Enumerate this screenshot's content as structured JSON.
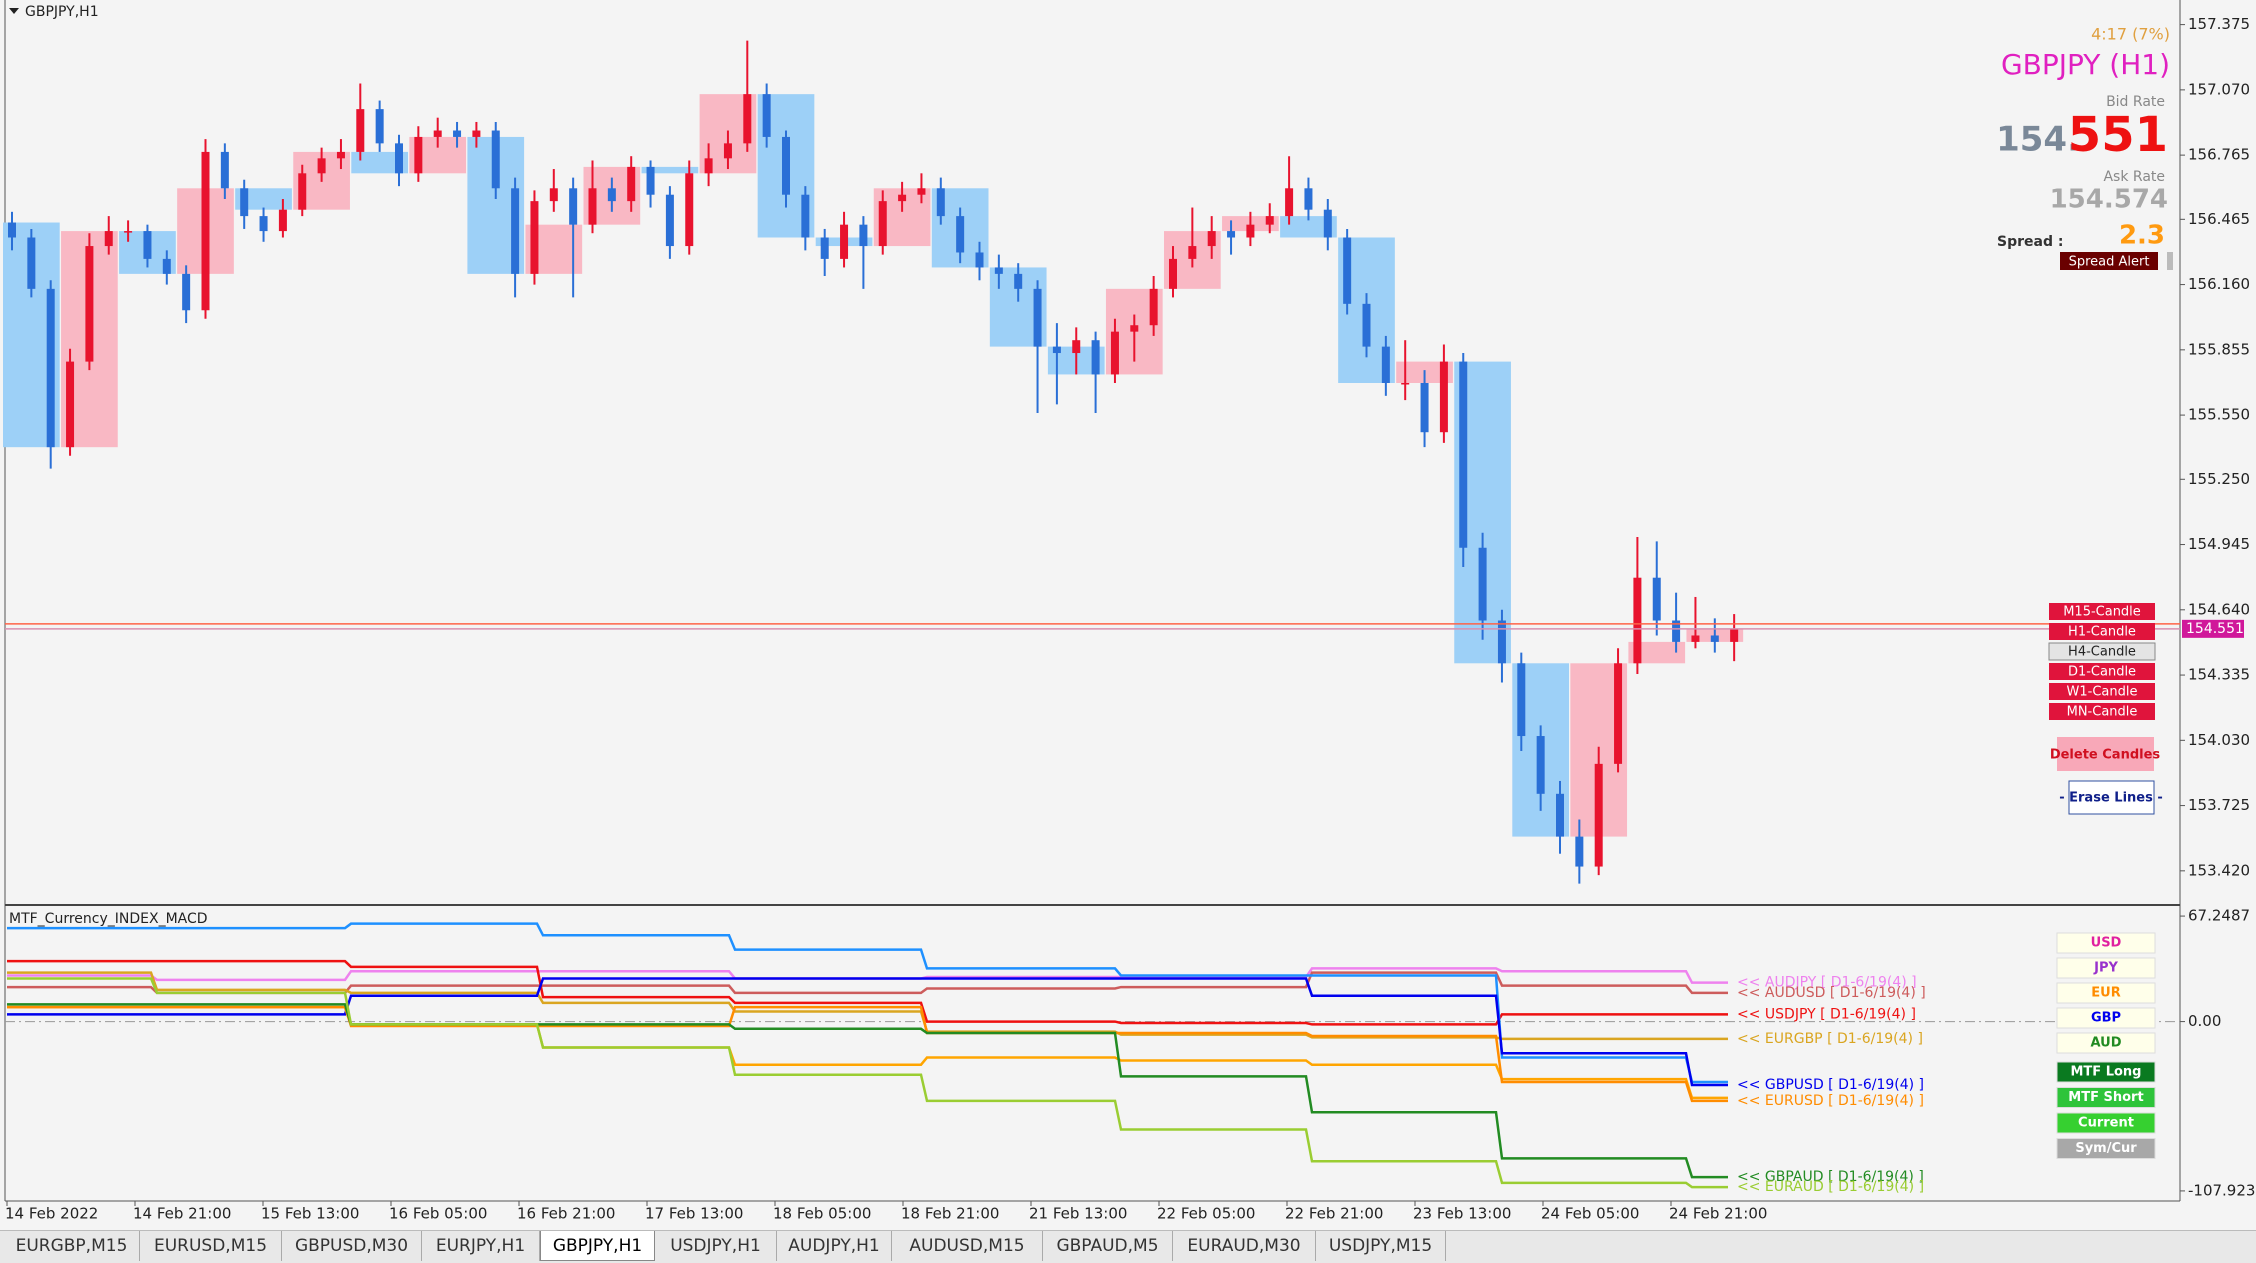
{
  "header": {
    "symbol": "GBPJPY,H1"
  },
  "price_chart": {
    "ylim": [
      153.265,
      157.49
    ],
    "yticks": [
      157.375,
      {
        "value": 157.07,
        "label": "157.070"
      },
      156.765,
      156.465,
      {
        "value": 156.16,
        "label": "156.160"
      },
      155.855,
      {
        "value": 155.55,
        "label": "155.550"
      },
      {
        "value": 155.25,
        "label": "155.250"
      },
      154.945,
      {
        "value": 154.64,
        "label": "154.640"
      },
      154.335,
      {
        "value": 154.03,
        "label": "154.030"
      },
      153.725,
      {
        "value": 153.42,
        "label": "153.420"
      }
    ],
    "up_color": "#e8132e",
    "down_color": "#2a6fd6",
    "up_box_color": "#f9b8c4",
    "down_box_color": "#9dd0f7",
    "bid": 154.551,
    "ask": 154.574,
    "bid_color": "#d890b0",
    "ask_color": "#ff6347",
    "candles": [
      [
        156.45,
        156.5,
        156.32,
        156.38
      ],
      [
        156.38,
        156.42,
        156.1,
        156.14
      ],
      [
        156.14,
        156.18,
        155.3,
        155.4
      ],
      [
        155.4,
        155.86,
        155.36,
        155.8
      ],
      [
        155.8,
        156.4,
        155.76,
        156.34
      ],
      [
        156.34,
        156.48,
        156.3,
        156.41
      ],
      [
        156.41,
        156.46,
        156.36,
        156.41
      ],
      [
        156.41,
        156.44,
        156.24,
        156.28
      ],
      [
        156.28,
        156.32,
        156.16,
        156.21
      ],
      [
        156.21,
        156.25,
        155.98,
        156.04
      ],
      [
        156.04,
        156.84,
        156.0,
        156.78
      ],
      [
        156.78,
        156.82,
        156.56,
        156.61
      ],
      [
        156.61,
        156.65,
        156.42,
        156.48
      ],
      [
        156.48,
        156.52,
        156.36,
        156.41
      ],
      [
        156.41,
        156.56,
        156.38,
        156.51
      ],
      [
        156.51,
        156.72,
        156.48,
        156.68
      ],
      [
        156.68,
        156.8,
        156.64,
        156.75
      ],
      [
        156.75,
        156.84,
        156.7,
        156.78
      ],
      [
        156.78,
        157.1,
        156.74,
        156.98
      ],
      [
        156.98,
        157.02,
        156.78,
        156.82
      ],
      [
        156.82,
        156.86,
        156.62,
        156.68
      ],
      [
        156.68,
        156.9,
        156.64,
        156.85
      ],
      [
        156.85,
        156.94,
        156.8,
        156.88
      ],
      [
        156.88,
        156.92,
        156.8,
        156.85
      ],
      [
        156.85,
        156.92,
        156.8,
        156.88
      ],
      [
        156.88,
        156.92,
        156.56,
        156.61
      ],
      [
        156.61,
        156.66,
        156.1,
        156.21
      ],
      [
        156.21,
        156.6,
        156.16,
        156.55
      ],
      [
        156.55,
        156.7,
        156.5,
        156.61
      ],
      [
        156.61,
        156.66,
        156.1,
        156.44
      ],
      [
        156.44,
        156.74,
        156.4,
        156.61
      ],
      [
        156.61,
        156.66,
        156.5,
        156.55
      ],
      [
        156.55,
        156.76,
        156.5,
        156.71
      ],
      [
        156.71,
        156.74,
        156.52,
        156.58
      ],
      [
        156.58,
        156.62,
        156.28,
        156.34
      ],
      [
        156.34,
        156.74,
        156.3,
        156.68
      ],
      [
        156.68,
        156.82,
        156.62,
        156.75
      ],
      [
        156.75,
        156.88,
        156.7,
        156.82
      ],
      [
        156.82,
        157.3,
        156.78,
        157.05
      ],
      [
        157.05,
        157.1,
        156.8,
        156.85
      ],
      [
        156.85,
        156.88,
        156.52,
        156.58
      ],
      [
        156.58,
        156.62,
        156.32,
        156.38
      ],
      [
        156.38,
        156.42,
        156.2,
        156.28
      ],
      [
        156.28,
        156.5,
        156.24,
        156.44
      ],
      [
        156.44,
        156.48,
        156.14,
        156.34
      ],
      [
        156.34,
        156.6,
        156.3,
        156.55
      ],
      [
        156.55,
        156.64,
        156.5,
        156.58
      ],
      [
        156.58,
        156.68,
        156.54,
        156.61
      ],
      [
        156.61,
        156.66,
        156.44,
        156.48
      ],
      [
        156.48,
        156.52,
        156.26,
        156.31
      ],
      [
        156.31,
        156.36,
        156.18,
        156.24
      ],
      [
        156.24,
        156.3,
        156.14,
        156.21
      ],
      [
        156.21,
        156.26,
        156.08,
        156.14
      ],
      [
        156.14,
        156.18,
        155.56,
        155.87
      ],
      [
        155.87,
        155.98,
        155.6,
        155.84
      ],
      [
        155.84,
        155.96,
        155.74,
        155.9
      ],
      [
        155.9,
        155.94,
        155.56,
        155.74
      ],
      [
        155.74,
        156.0,
        155.7,
        155.94
      ],
      [
        155.94,
        156.02,
        155.8,
        155.97
      ],
      [
        155.97,
        156.2,
        155.92,
        156.14
      ],
      [
        156.14,
        156.34,
        156.1,
        156.28
      ],
      [
        156.28,
        156.52,
        156.24,
        156.34
      ],
      [
        156.34,
        156.48,
        156.28,
        156.41
      ],
      [
        156.41,
        156.46,
        156.3,
        156.38
      ],
      [
        156.38,
        156.5,
        156.34,
        156.44
      ],
      [
        156.44,
        156.54,
        156.4,
        156.48
      ],
      [
        156.48,
        156.76,
        156.44,
        156.61
      ],
      [
        156.61,
        156.66,
        156.46,
        156.51
      ],
      [
        156.51,
        156.56,
        156.32,
        156.38
      ],
      [
        156.38,
        156.42,
        156.02,
        156.07
      ],
      [
        156.07,
        156.12,
        155.82,
        155.87
      ],
      [
        155.87,
        155.92,
        155.64,
        155.7
      ],
      [
        155.7,
        155.9,
        155.62,
        155.7
      ],
      [
        155.7,
        155.76,
        155.4,
        155.47
      ],
      [
        155.47,
        155.88,
        155.42,
        155.8
      ],
      [
        155.8,
        155.84,
        154.84,
        154.93
      ],
      [
        154.93,
        155.0,
        154.5,
        154.59
      ],
      [
        154.59,
        154.64,
        154.3,
        154.39
      ],
      [
        154.39,
        154.44,
        153.98,
        154.05
      ],
      [
        154.05,
        154.1,
        153.7,
        153.78
      ],
      [
        153.78,
        153.84,
        153.5,
        153.58
      ],
      [
        153.58,
        153.66,
        153.36,
        153.44
      ],
      [
        153.44,
        154.0,
        153.4,
        153.92
      ],
      [
        153.92,
        154.46,
        153.88,
        154.39
      ],
      [
        154.39,
        154.98,
        154.34,
        154.79
      ],
      [
        154.79,
        154.96,
        154.52,
        154.59
      ],
      [
        154.59,
        154.72,
        154.44,
        154.49
      ],
      [
        154.49,
        154.7,
        154.46,
        154.52
      ],
      [
        154.52,
        154.6,
        154.44,
        154.49
      ],
      [
        154.49,
        154.62,
        154.4,
        154.551
      ]
    ]
  },
  "info_panel": {
    "timer": "4:17 (7%)",
    "symbol": "GBPJPY (H1)",
    "bid_caption": "Bid Rate",
    "bid_big": "154.",
    "bid_pips": "551",
    "ask_caption": "Ask Rate",
    "ask": "154.574",
    "spread_caption": "Spread :",
    "spread": "2.3",
    "spread_alert": "Spread Alert"
  },
  "candle_buttons": [
    "M15-Candle",
    "H1-Candle",
    "H4-Candle",
    "D1-Candle",
    "W1-Candle",
    "MN-Candle"
  ],
  "delete_button": "Delete Candles",
  "erase_button": "- Erase Lines -",
  "indicator": {
    "title": "MTF_Currency_INDEX_MACD",
    "ylim": [
      -114.35,
      73.67
    ],
    "yticks": [
      67.2487,
      {
        "value": 0,
        "label": "0.00"
      },
      -107.9239
    ],
    "zero_line": true,
    "series": [
      {
        "name": "<< AUDJPY [ D1-6/19(4) ]",
        "color": "#ee82ee",
        "values": [
          29.4,
          26.6,
          32.1,
          32.1,
          27.5,
          28.4,
          28.4,
          33.9,
          32.1,
          24.8
        ]
      },
      {
        "name": "<< AUDUSD [ D1-6/19(4) ]",
        "color": "#cd5c5c",
        "values": [
          22.0,
          18.3,
          22.9,
          22.9,
          18.3,
          21.1,
          22.0,
          31.2,
          22.9,
          18.3
        ]
      },
      {
        "name": "<< USDJPY [ D1-6/19(4) ]",
        "color": "#ee1111",
        "values": [
          38.5,
          38.5,
          34.9,
          15.6,
          11.9,
          0.0,
          -0.9,
          -1.8,
          4.6,
          4.6
        ]
      },
      {
        "name": "<< EURGBP [ D1-6/19(4) ]",
        "color": "#daa520",
        "values": [
          31.2,
          20.2,
          18.3,
          11.9,
          6.4,
          -6.4,
          -8.3,
          -10.1,
          -11.0,
          -11.0
        ]
      },
      {
        "name": null,
        "color": "#1e90ff",
        "values": [
          59.6,
          59.6,
          62.4,
          55.0,
          45.9,
          33.9,
          29.4,
          29.4,
          -22.9,
          -38.5
        ]
      },
      {
        "name": "<< GBPUSD [ D1-6/19(4) ]",
        "color": "#0000ee",
        "values": [
          4.6,
          4.6,
          16.5,
          27.5,
          27.5,
          27.5,
          27.5,
          16.5,
          -20.2,
          -40.4
        ]
      },
      {
        "name": null,
        "color": "#ffa500",
        "values": [
          9.2,
          9.2,
          -1.8,
          -16.5,
          -27.5,
          -22.9,
          -24.8,
          -27.5,
          -36.7,
          -48.6
        ]
      },
      {
        "name": "<< EURUSD [ D1-6/19(4) ]",
        "color": "#ff8c00",
        "values": [
          9.2,
          9.2,
          -2.8,
          -2.8,
          9.2,
          -7.3,
          -7.3,
          -9.2,
          -38.5,
          -50.5
        ]
      },
      {
        "name": "<< GBPAUD [ D1-6/19(4) ]",
        "color": "#228b22",
        "values": [
          11.0,
          11.0,
          -1.8,
          -1.8,
          -4.6,
          -7.3,
          -34.9,
          -57.8,
          -87.2,
          -99.1
        ]
      },
      {
        "name": "<< EURAUD [ D1-6/19(4) ]",
        "color": "#9acd32",
        "values": [
          27.5,
          18.3,
          -1.8,
          -16.5,
          -33.9,
          -50.5,
          -68.8,
          -89.0,
          -102.8,
          -105.5
        ]
      }
    ]
  },
  "currency_buttons": [
    {
      "label": "USD",
      "color": "#e020a0"
    },
    {
      "label": "JPY",
      "color": "#9932cc"
    },
    {
      "label": "EUR",
      "color": "#ff8c00"
    },
    {
      "label": "GBP",
      "color": "#0000ee"
    },
    {
      "label": "AUD",
      "color": "#228b22"
    }
  ],
  "mode_buttons": [
    {
      "label": "MTF Long",
      "color": "#0a7a20"
    },
    {
      "label": "MTF Short",
      "color": "#2ec43a"
    },
    {
      "label": "Current",
      "color": "#36d030"
    },
    {
      "label": "Sym/Cur",
      "color": "#a8a8a8"
    }
  ],
  "time_labels": [
    "14 Feb 2022",
    "14 Feb 21:00",
    "15 Feb 13:00",
    "16 Feb 05:00",
    "16 Feb 21:00",
    "17 Feb 13:00",
    "18 Feb 05:00",
    "18 Feb 21:00",
    "21 Feb 13:00",
    "22 Feb 05:00",
    "22 Feb 21:00",
    "23 Feb 13:00",
    "24 Feb 05:00",
    "24 Feb 21:00"
  ],
  "tabs": [
    "EURGBP,M15",
    "EURUSD,M15",
    "GBPUSD,M30",
    "EURJPY,H1",
    "GBPJPY,H1",
    "USDJPY,H1",
    "AUDJPY,H1",
    "AUDUSD,M15",
    "GBPAUD,M5",
    "EURAUD,M30",
    "USDJPY,M15"
  ],
  "active_tab": 4
}
